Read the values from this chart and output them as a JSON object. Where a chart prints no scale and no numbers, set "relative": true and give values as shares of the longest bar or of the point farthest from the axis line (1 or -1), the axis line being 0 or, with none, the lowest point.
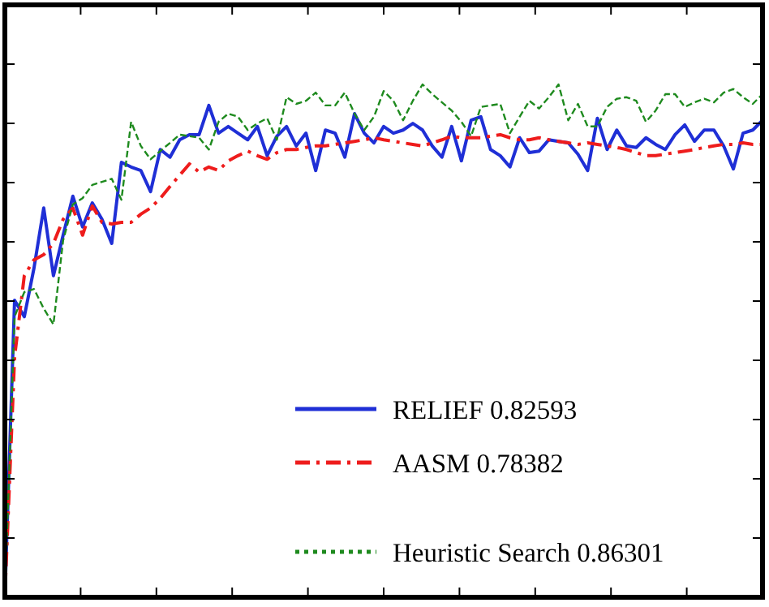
{
  "chart_data": {
    "type": "line",
    "relative": true,
    "legend": "bottom right",
    "categories": [
      null,
      null,
      null,
      null,
      null,
      null,
      null,
      null,
      null,
      null,
      null,
      null,
      null,
      null,
      null,
      null,
      null,
      null,
      null,
      null,
      null,
      null,
      null,
      null,
      null,
      null,
      null,
      null,
      null,
      null,
      null,
      null,
      null,
      null,
      null,
      null,
      null,
      null,
      null,
      null,
      null,
      null,
      null,
      null,
      null,
      null,
      null,
      null,
      null,
      null,
      null,
      null,
      null,
      null,
      null,
      null,
      null,
      null,
      null,
      null,
      null,
      null,
      null,
      null,
      null,
      null,
      null,
      null,
      null,
      null,
      null,
      null,
      null,
      null,
      null,
      null,
      null,
      null,
      null
    ],
    "series": [
      {
        "name": "RELIEF  0.82593",
        "color": "#1f2fd6",
        "line_style": "solid",
        "values": [
          0,
          0.579,
          0.547,
          0.642,
          0.759,
          0.627,
          0.706,
          0.782,
          0.722,
          0.769,
          0.737,
          0.69,
          0.848,
          0.839,
          0.832,
          0.791,
          0.873,
          0.858,
          0.892,
          0.902,
          0.902,
          0.959,
          0.905,
          0.918,
          0.905,
          0.892,
          0.918,
          0.861,
          0.899,
          0.918,
          0.88,
          0.905,
          0.832,
          0.911,
          0.905,
          0.858,
          0.943,
          0.905,
          0.886,
          0.918,
          0.905,
          0.911,
          0.924,
          0.911,
          0.88,
          0.858,
          0.918,
          0.851,
          0.93,
          0.937,
          0.873,
          0.861,
          0.839,
          0.896,
          0.867,
          0.87,
          0.892,
          0.889,
          0.886,
          0.864,
          0.832,
          0.934,
          0.873,
          0.911,
          0.88,
          0.877,
          0.896,
          0.883,
          0.873,
          0.902,
          0.921,
          0.889,
          0.911,
          0.911,
          0.88,
          0.835,
          0.905,
          0.911,
          0.93
        ]
      },
      {
        "name": "AASM  0.78382",
        "color": "#ee1c1c",
        "line_style": "dashdot",
        "values": [
          0,
          0.468,
          0.627,
          0.658,
          0.668,
          0.69,
          0.737,
          0.759,
          0.706,
          0.763,
          0.731,
          0.728,
          0.731,
          0.731,
          0.747,
          0.759,
          0.778,
          0.801,
          0.823,
          0.845,
          0.829,
          0.839,
          0.832,
          0.851,
          0.861,
          0.87,
          0.861,
          0.854,
          0.867,
          0.873,
          0.873,
          0.877,
          0.88,
          0.88,
          0.883,
          0.886,
          0.889,
          0.892,
          0.896,
          0.892,
          0.889,
          0.886,
          0.883,
          0.88,
          0.886,
          0.892,
          0.899,
          0.896,
          0.896,
          0.896,
          0.899,
          0.902,
          0.896,
          0.892,
          0.892,
          0.896,
          0.892,
          0.889,
          0.886,
          0.883,
          0.886,
          0.883,
          0.88,
          0.877,
          0.873,
          0.867,
          0.861,
          0.861,
          0.864,
          0.867,
          0.87,
          0.873,
          0.877,
          0.88,
          0.883,
          0.883,
          0.886,
          0.883,
          0.883
        ]
      },
      {
        "name": "Heuristic Search  0.86301",
        "color": "#1e8a1e",
        "line_style": "dashed",
        "values": [
          0,
          0.547,
          0.595,
          0.601,
          0.563,
          0.532,
          0.696,
          0.766,
          0.778,
          0.804,
          0.81,
          0.816,
          0.775,
          0.927,
          0.88,
          0.854,
          0.87,
          0.886,
          0.902,
          0.899,
          0.896,
          0.873,
          0.927,
          0.943,
          0.937,
          0.911,
          0.924,
          0.934,
          0.892,
          0.975,
          0.962,
          0.968,
          0.984,
          0.959,
          0.959,
          0.984,
          0.943,
          0.911,
          0.937,
          0.987,
          0.968,
          0.93,
          0.968,
          1,
          0.981,
          0.965,
          0.949,
          0.927,
          0.899,
          0.956,
          0.959,
          0.962,
          0.905,
          0.937,
          0.968,
          0.953,
          0.975,
          1,
          0.93,
          0.962,
          0.918,
          0.918,
          0.956,
          0.972,
          0.975,
          0.968,
          0.927,
          0.949,
          0.981,
          0.981,
          0.956,
          0.965,
          0.972,
          0.965,
          0.984,
          0.991,
          0.975,
          0.962,
          0.981
        ]
      }
    ]
  }
}
